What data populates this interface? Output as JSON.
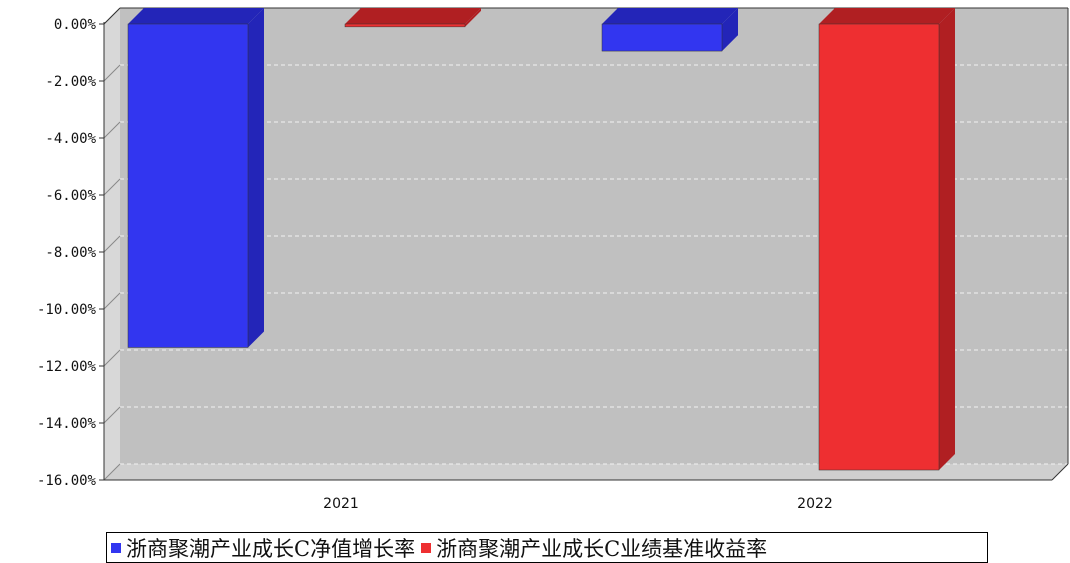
{
  "chart_data": {
    "type": "bar",
    "categories": [
      "2021",
      "2022"
    ],
    "series": [
      {
        "name": "浙商聚潮产业成长C净值增长率",
        "color": "#3236f0",
        "side_color": "#2325b8",
        "values": [
          -11.35,
          -0.95
        ]
      },
      {
        "name": "浙商聚潮产业成长C业绩基准收益率",
        "color": "#ee2f31",
        "side_color": "#b01f22",
        "values": [
          -0.1,
          -15.65
        ]
      }
    ],
    "ylim": [
      -16,
      0
    ],
    "yticks": [
      0,
      -2,
      -4,
      -6,
      -8,
      -10,
      -12,
      -14,
      -16
    ],
    "ytick_labels": [
      "0.00%",
      "-2.00%",
      "-4.00%",
      "-6.00%",
      "-8.00%",
      "-10.00%",
      "-12.00%",
      "-14.00%",
      "-16.00%"
    ],
    "grid": true,
    "legend_position": "bottom",
    "style": "3d"
  }
}
